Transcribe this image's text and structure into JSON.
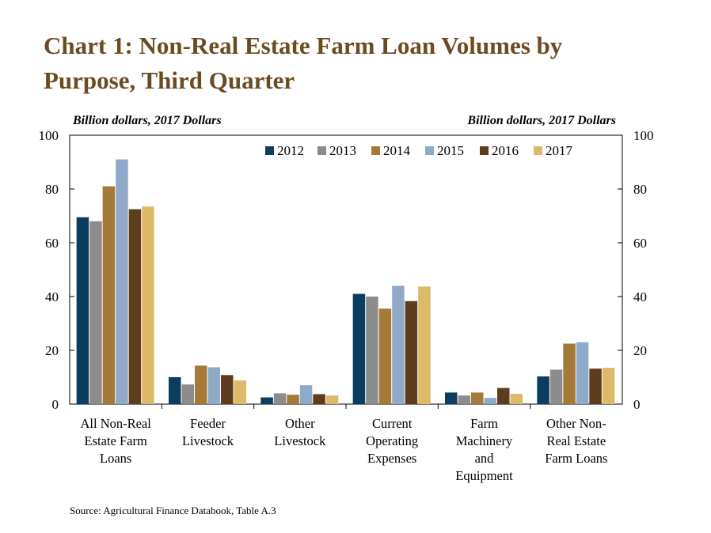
{
  "title": "Chart 1: Non-Real Estate Farm Loan Volumes by Purpose, Third Quarter",
  "title_lines": [
    "Chart 1: Non-Real Estate Farm Loan Volumes by",
    "Purpose, Third Quarter"
  ],
  "unit_left": "Billion dollars, 2017 Dollars",
  "unit_right": "Billion dollars, 2017 Dollars",
  "source": "Source: Agricultural Finance Databook, Table A.3",
  "colors": {
    "title": "#6b4c22",
    "series": [
      "#0c3c60",
      "#8c8c8c",
      "#a57a38",
      "#8fa9c8",
      "#5e3d1c",
      "#ddb96a"
    ]
  },
  "chart_data": {
    "type": "bar",
    "title": "Chart 1: Non-Real Estate Farm Loan Volumes by Purpose, Third Quarter",
    "ylabel": "Billion dollars, 2017 Dollars",
    "y2label": "Billion dollars, 2017 Dollars",
    "ylim": [
      0,
      100
    ],
    "yticks": [
      0,
      20,
      40,
      60,
      80,
      100
    ],
    "grid": false,
    "legend_position": "top-right",
    "categories": [
      [
        "All Non-Real",
        "Estate Farm",
        "Loans"
      ],
      [
        "Feeder",
        "Livestock"
      ],
      [
        "Other",
        "Livestock"
      ],
      [
        "Current",
        "Operating",
        "Expenses"
      ],
      [
        "Farm",
        "Machinery",
        "and",
        "Equipment"
      ],
      [
        "Other Non-",
        "Real Estate",
        "Farm Loans"
      ]
    ],
    "series": [
      {
        "name": "2012",
        "values": [
          69.5,
          10,
          2.5,
          41,
          4.3,
          10.3
        ]
      },
      {
        "name": "2013",
        "values": [
          68,
          7.3,
          4,
          40,
          3.2,
          12.8
        ]
      },
      {
        "name": "2014",
        "values": [
          81,
          14.3,
          3.5,
          35.5,
          4.3,
          22.5
        ]
      },
      {
        "name": "2015",
        "values": [
          91,
          13.7,
          7,
          44,
          2.3,
          23
        ]
      },
      {
        "name": "2016",
        "values": [
          72.5,
          10.8,
          3.7,
          38.3,
          6,
          13.2
        ]
      },
      {
        "name": "2017",
        "values": [
          73.5,
          8.8,
          3.2,
          43.7,
          3.8,
          13.5
        ]
      }
    ]
  }
}
